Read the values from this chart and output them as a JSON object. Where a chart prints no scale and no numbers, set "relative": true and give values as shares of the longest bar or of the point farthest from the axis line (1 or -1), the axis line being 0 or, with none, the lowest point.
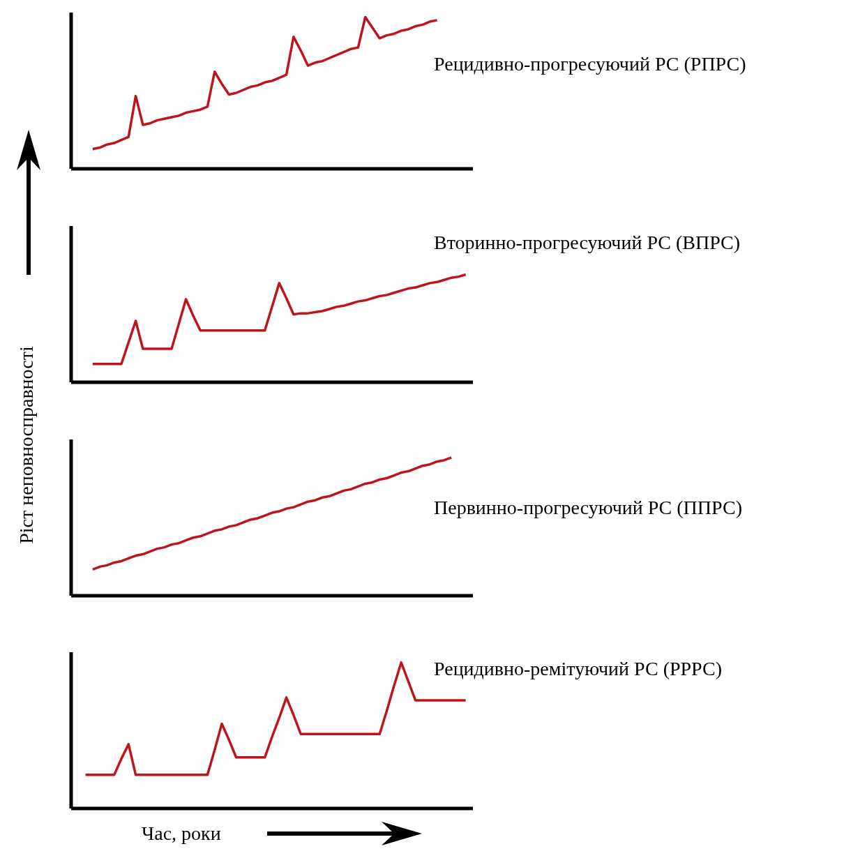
{
  "chart_data": [
    {
      "type": "line",
      "title": "Рецидивно-прогресуючий РС (РПРС)",
      "relative": true,
      "tick_labels": false,
      "marker": "none",
      "line_style": "solid",
      "categories": [
        null,
        null,
        null,
        null,
        null,
        null,
        null,
        null,
        null,
        null,
        null,
        null,
        null,
        null,
        null,
        null,
        null,
        null,
        null,
        null,
        null,
        null,
        null,
        null,
        null,
        null,
        null,
        null,
        null,
        null,
        null,
        null,
        null,
        null,
        null,
        null,
        null,
        null,
        null,
        null,
        null,
        null,
        null,
        null,
        null,
        null,
        null,
        null,
        null,
        null,
        null,
        null,
        null,
        null,
        null,
        null,
        null
      ],
      "series": [
        {
          "color": "#c0141c",
          "values": [
            null,
            null,
            null,
            0.13,
            0.14,
            0.16,
            0.17,
            0.19,
            0.21,
            0.48,
            0.29,
            0.3,
            0.32,
            0.33,
            0.34,
            0.35,
            0.37,
            0.38,
            0.39,
            0.41,
            0.64,
            0.56,
            0.49,
            0.5,
            0.52,
            0.54,
            0.55,
            0.57,
            0.58,
            0.6,
            0.62,
            0.87,
            0.78,
            0.68,
            0.7,
            0.71,
            0.73,
            0.75,
            0.77,
            0.79,
            0.8,
            1,
            0.93,
            0.86,
            0.88,
            0.89,
            0.91,
            0.92,
            0.94,
            0.95,
            0.97,
            0.98,
            null,
            null,
            null,
            null,
            null
          ]
        }
      ]
    },
    {
      "type": "line",
      "title": "Вторинно-прогресуючий РС (ВПРС)",
      "relative": true,
      "tick_labels": false,
      "marker": "none",
      "line_style": "solid",
      "categories": [
        null,
        null,
        null,
        null,
        null,
        null,
        null,
        null,
        null,
        null,
        null,
        null,
        null,
        null,
        null,
        null,
        null,
        null,
        null,
        null,
        null,
        null,
        null,
        null,
        null,
        null,
        null,
        null,
        null,
        null,
        null,
        null,
        null,
        null,
        null,
        null,
        null,
        null,
        null,
        null,
        null,
        null,
        null,
        null,
        null,
        null,
        null,
        null,
        null,
        null,
        null,
        null,
        null,
        null,
        null,
        null,
        null
      ],
      "series": [
        {
          "color": "#c0141c",
          "values": [
            null,
            null,
            null,
            0.17,
            0.17,
            0.17,
            0.17,
            0.17,
            0.37,
            0.57,
            0.31,
            0.31,
            0.31,
            0.31,
            0.31,
            0.54,
            0.77,
            0.62,
            0.48,
            0.48,
            0.48,
            0.48,
            0.48,
            0.48,
            0.48,
            0.48,
            0.48,
            0.48,
            0.7,
            0.92,
            0.78,
            0.63,
            0.64,
            0.64,
            0.65,
            0.66,
            0.68,
            0.7,
            0.71,
            0.73,
            0.75,
            0.76,
            0.78,
            0.8,
            0.81,
            0.83,
            0.85,
            0.87,
            0.88,
            0.9,
            0.92,
            0.93,
            0.95,
            0.97,
            0.98,
            1,
            null
          ]
        }
      ]
    },
    {
      "type": "line",
      "title": "Первинно-прогресуючий РС (ППРС)",
      "ylabel": "Ріст неповносправності",
      "relative": true,
      "tick_labels": false,
      "marker": "none",
      "line_style": "solid",
      "categories": [
        null,
        null,
        null,
        null,
        null,
        null,
        null,
        null,
        null,
        null,
        null,
        null,
        null,
        null,
        null,
        null,
        null,
        null,
        null,
        null,
        null,
        null,
        null,
        null,
        null,
        null,
        null,
        null,
        null,
        null,
        null,
        null,
        null,
        null,
        null,
        null,
        null,
        null,
        null,
        null,
        null,
        null,
        null,
        null,
        null,
        null,
        null,
        null,
        null,
        null,
        null,
        null,
        null,
        null,
        null,
        null,
        null
      ],
      "series": [
        {
          "color": "#c0141c",
          "values": [
            null,
            null,
            null,
            0.19,
            0.21,
            0.22,
            0.24,
            0.25,
            0.27,
            0.29,
            0.3,
            0.32,
            0.34,
            0.35,
            0.37,
            0.38,
            0.4,
            0.42,
            0.43,
            0.45,
            0.47,
            0.48,
            0.5,
            0.51,
            0.53,
            0.55,
            0.56,
            0.58,
            0.6,
            0.61,
            0.63,
            0.64,
            0.66,
            0.68,
            0.69,
            0.71,
            0.72,
            0.74,
            0.76,
            0.77,
            0.79,
            0.81,
            0.82,
            0.84,
            0.85,
            0.87,
            0.89,
            0.9,
            0.92,
            0.94,
            0.95,
            0.97,
            0.98,
            1,
            null,
            null,
            null
          ]
        }
      ]
    },
    {
      "type": "line",
      "title": "Рецидивно-ремітуючий РС (РРРС)",
      "xlabel": "Час, роки",
      "relative": true,
      "tick_labels": false,
      "marker": "none",
      "line_style": "solid",
      "categories": [
        null,
        null,
        null,
        null,
        null,
        null,
        null,
        null,
        null,
        null,
        null,
        null,
        null,
        null,
        null,
        null,
        null,
        null,
        null,
        null,
        null,
        null,
        null,
        null,
        null,
        null,
        null,
        null,
        null,
        null,
        null,
        null,
        null,
        null,
        null,
        null,
        null,
        null,
        null,
        null,
        null,
        null,
        null,
        null,
        null,
        null,
        null,
        null,
        null,
        null,
        null,
        null,
        null,
        null,
        null,
        null,
        null
      ],
      "series": [
        {
          "color": "#c0141c",
          "values": [
            null,
            null,
            0.23,
            0.23,
            0.23,
            0.23,
            0.23,
            0.34,
            0.44,
            0.23,
            0.23,
            0.23,
            0.23,
            0.23,
            0.23,
            0.23,
            0.23,
            0.23,
            0.23,
            0.23,
            0.4,
            0.58,
            0.47,
            0.35,
            0.35,
            0.35,
            0.35,
            0.35,
            0.49,
            0.62,
            0.76,
            0.64,
            0.51,
            0.51,
            0.51,
            0.51,
            0.51,
            0.51,
            0.51,
            0.51,
            0.51,
            0.51,
            0.51,
            0.51,
            0.67,
            0.84,
            1,
            0.87,
            0.74,
            0.74,
            0.74,
            0.74,
            0.74,
            0.74,
            0.74,
            0.74,
            null
          ]
        }
      ]
    }
  ]
}
